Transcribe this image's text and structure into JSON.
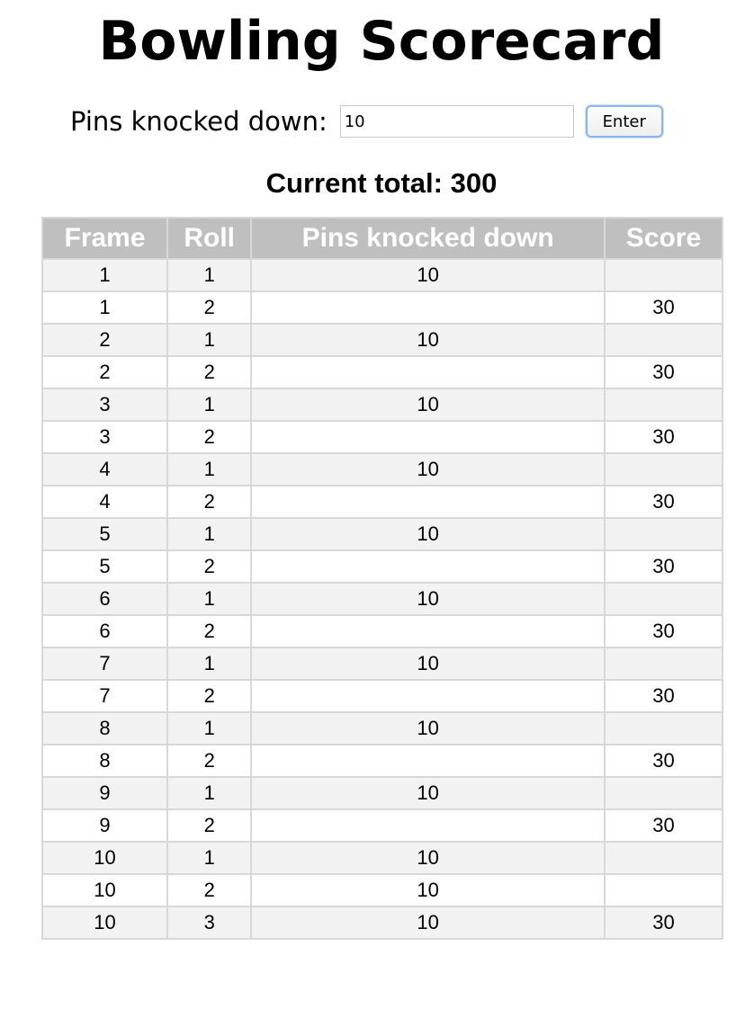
{
  "page": {
    "title": "Bowling Scorecard"
  },
  "input": {
    "label": "Pins knocked down:",
    "value": "10",
    "button_label": "Enter"
  },
  "total": {
    "text": "Current total: 300"
  },
  "table": {
    "headers": [
      "Frame",
      "Roll",
      "Pins knocked down",
      "Score"
    ],
    "rows": [
      {
        "frame": "1",
        "roll": "1",
        "pins": "10",
        "score": ""
      },
      {
        "frame": "1",
        "roll": "2",
        "pins": "",
        "score": "30"
      },
      {
        "frame": "2",
        "roll": "1",
        "pins": "10",
        "score": ""
      },
      {
        "frame": "2",
        "roll": "2",
        "pins": "",
        "score": "30"
      },
      {
        "frame": "3",
        "roll": "1",
        "pins": "10",
        "score": ""
      },
      {
        "frame": "3",
        "roll": "2",
        "pins": "",
        "score": "30"
      },
      {
        "frame": "4",
        "roll": "1",
        "pins": "10",
        "score": ""
      },
      {
        "frame": "4",
        "roll": "2",
        "pins": "",
        "score": "30"
      },
      {
        "frame": "5",
        "roll": "1",
        "pins": "10",
        "score": ""
      },
      {
        "frame": "5",
        "roll": "2",
        "pins": "",
        "score": "30"
      },
      {
        "frame": "6",
        "roll": "1",
        "pins": "10",
        "score": ""
      },
      {
        "frame": "6",
        "roll": "2",
        "pins": "",
        "score": "30"
      },
      {
        "frame": "7",
        "roll": "1",
        "pins": "10",
        "score": ""
      },
      {
        "frame": "7",
        "roll": "2",
        "pins": "",
        "score": "30"
      },
      {
        "frame": "8",
        "roll": "1",
        "pins": "10",
        "score": ""
      },
      {
        "frame": "8",
        "roll": "2",
        "pins": "",
        "score": "30"
      },
      {
        "frame": "9",
        "roll": "1",
        "pins": "10",
        "score": ""
      },
      {
        "frame": "9",
        "roll": "2",
        "pins": "",
        "score": "30"
      },
      {
        "frame": "10",
        "roll": "1",
        "pins": "10",
        "score": ""
      },
      {
        "frame": "10",
        "roll": "2",
        "pins": "10",
        "score": ""
      },
      {
        "frame": "10",
        "roll": "3",
        "pins": "10",
        "score": "30"
      }
    ]
  }
}
